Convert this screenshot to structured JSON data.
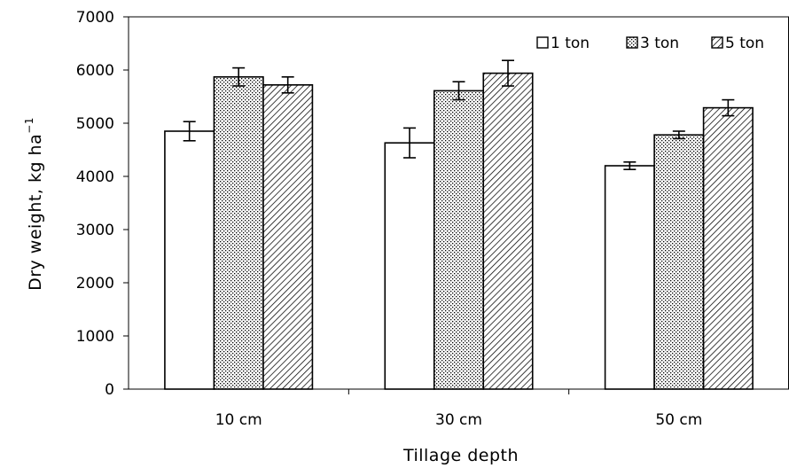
{
  "chart_data": {
    "type": "bar",
    "xlabel": "Tillage depth",
    "ylabel": "Dry weight,  kg ha",
    "ylabel_sup": "−1",
    "categories": [
      "10 cm",
      "30 cm",
      "50 cm"
    ],
    "series": [
      {
        "name": "1 ton",
        "pattern": "none",
        "values": [
          4850,
          4630,
          4200
        ],
        "errors": [
          180,
          280,
          70
        ]
      },
      {
        "name": "3 ton",
        "pattern": "dots",
        "values": [
          5870,
          5610,
          4780
        ],
        "errors": [
          170,
          170,
          70
        ]
      },
      {
        "name": "5 ton",
        "pattern": "hatch",
        "values": [
          5720,
          5940,
          5290
        ],
        "errors": [
          150,
          240,
          150
        ]
      }
    ],
    "ylim": [
      0,
      7000
    ],
    "yticks": [
      0,
      1000,
      2000,
      3000,
      4000,
      5000,
      6000,
      7000
    ],
    "grid": false,
    "legend_position": "top-right",
    "colors": {
      "stroke": "#000000",
      "fill": "#ffffff"
    }
  }
}
